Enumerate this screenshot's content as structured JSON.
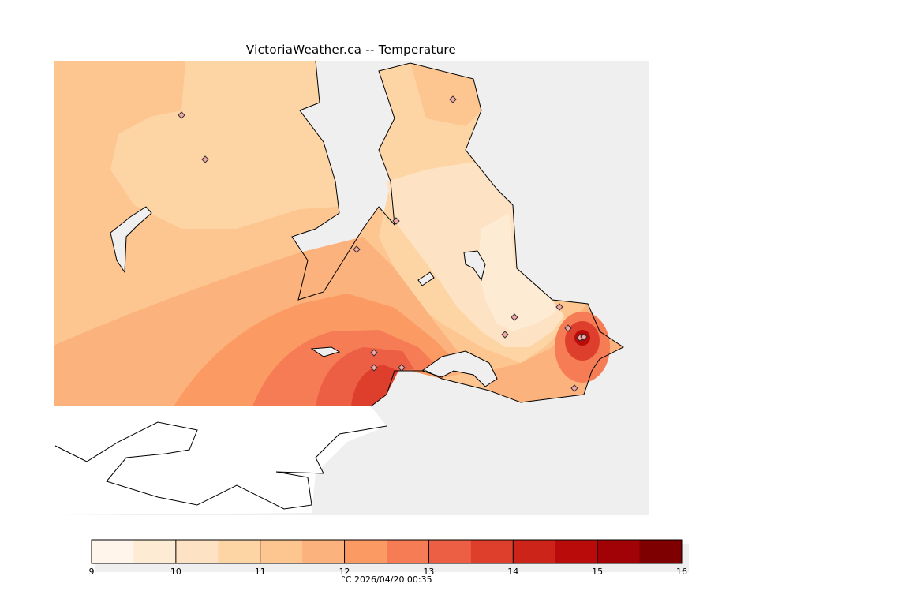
{
  "chart_data": {
    "type": "heatmap",
    "title": "VictoriaWeather.ca -- Temperature",
    "units": "°C",
    "timestamp": "2026/04/20 00:35",
    "caption": "°C  2026/04/20 00:35",
    "colorbar": {
      "min": 9,
      "max": 16,
      "step": 0.5,
      "tick_labels": [
        "9",
        "10",
        "11",
        "12",
        "13",
        "14",
        "15",
        "16"
      ],
      "colors": [
        "#fff5eb",
        "#feebd4",
        "#fde2c3",
        "#fdd5a5",
        "#fdc58f",
        "#fcb27c",
        "#fb9a62",
        "#f57c54",
        "#ec5f45",
        "#de3f2c",
        "#cc2419",
        "#b90c0a",
        "#a00205",
        "#7f0000"
      ]
    },
    "water_color": "#efefef",
    "no_data_color": "#ffffff"
  }
}
